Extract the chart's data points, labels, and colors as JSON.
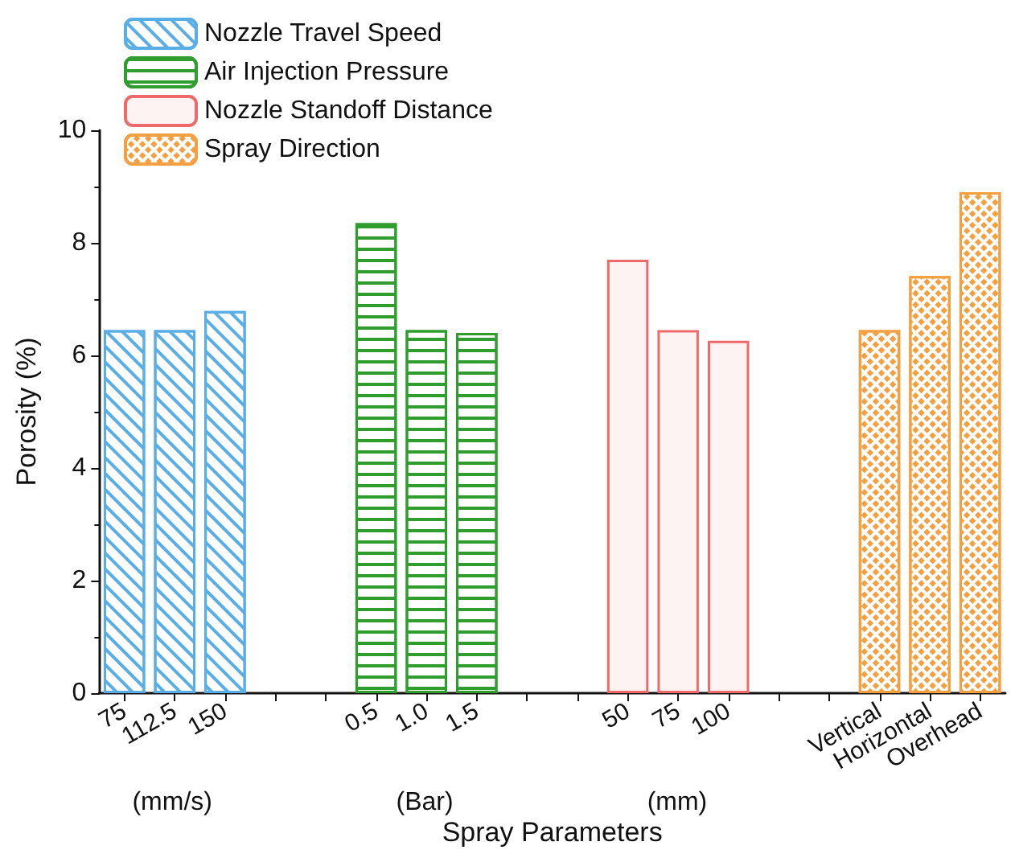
{
  "chart_data": {
    "type": "bar",
    "xlabel": "Spray Parameters",
    "ylabel": "Porosity (%)",
    "categories": [
      "75",
      "112.5",
      "150",
      null,
      null,
      "0.5",
      "1.0",
      "1.5",
      null,
      null,
      "50",
      "75",
      "100",
      null,
      null,
      "Vertical",
      "Horizontal",
      "Overhead"
    ],
    "series": [
      {
        "name": "Nozzle Travel Speed",
        "color": "#5aaee6",
        "values": [
          6.45,
          6.45,
          6.79,
          null,
          null,
          null,
          null,
          null,
          null,
          null,
          null,
          null,
          null,
          null,
          null,
          null,
          null,
          null
        ]
      },
      {
        "name": "Air Injection Pressure",
        "color": "#2f9e2f",
        "values": [
          null,
          null,
          null,
          null,
          null,
          8.35,
          6.45,
          6.4,
          null,
          null,
          null,
          null,
          null,
          null,
          null,
          null,
          null,
          null
        ]
      },
      {
        "name": "Nozzle Standoff Distance",
        "color": "#ee6a6a",
        "values": [
          null,
          null,
          null,
          null,
          null,
          null,
          null,
          null,
          null,
          null,
          7.7,
          6.45,
          6.26,
          null,
          null,
          null,
          null,
          null
        ]
      },
      {
        "name": "Spray Direction",
        "color": "#f5a040",
        "values": [
          null,
          null,
          null,
          null,
          null,
          null,
          null,
          null,
          null,
          null,
          null,
          null,
          null,
          null,
          null,
          6.45,
          7.41,
          8.9
        ]
      }
    ],
    "annotations": [
      "(mm/s)",
      "(Bar)",
      "(mm)"
    ],
    "ylim": [
      0,
      10
    ],
    "yticks": [
      0,
      2,
      4,
      6,
      8,
      10
    ],
    "grid": false,
    "legend": "top left"
  }
}
